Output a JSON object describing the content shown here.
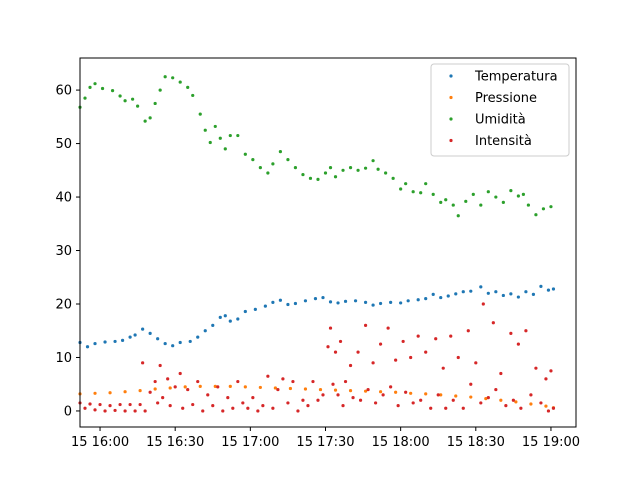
{
  "chart_data": {
    "type": "scatter",
    "title": "",
    "xlabel": "",
    "ylabel": "",
    "x_range": [
      "15 15:44",
      "15 19:02"
    ],
    "ylim": [
      -3,
      66
    ],
    "x_ticks": [
      {
        "t": "15:52",
        "label": "15 16:00"
      },
      {
        "t": "16:22",
        "label": "15 16:30"
      },
      {
        "t": "16:52",
        "label": "15 17:00"
      },
      {
        "t": "17:22",
        "label": "15 17:30"
      },
      {
        "t": "17:52",
        "label": "15 18:00"
      },
      {
        "t": "18:22",
        "label": "15 18:30"
      },
      {
        "t": "18:52",
        "label": "15 19:00"
      }
    ],
    "y_ticks": [
      0,
      10,
      20,
      30,
      40,
      50,
      60
    ],
    "grid": false,
    "legend_position": "top-right",
    "series": [
      {
        "name": "Temperatura",
        "color": "#1f77b4",
        "points": [
          [
            "15:44",
            12.8
          ],
          [
            "15:47",
            12.0
          ],
          [
            "15:50",
            12.6
          ],
          [
            "15:54",
            12.9
          ],
          [
            "15:58",
            13.0
          ],
          [
            "16:01",
            13.2
          ],
          [
            "16:04",
            13.8
          ],
          [
            "16:06",
            14.2
          ],
          [
            "16:09",
            15.3
          ],
          [
            "16:12",
            14.5
          ],
          [
            "16:15",
            13.5
          ],
          [
            "16:18",
            12.6
          ],
          [
            "16:21",
            12.2
          ],
          [
            "16:24",
            12.8
          ],
          [
            "16:28",
            13.0
          ],
          [
            "16:31",
            13.8
          ],
          [
            "16:34",
            15.0
          ],
          [
            "16:37",
            16.0
          ],
          [
            "16:40",
            17.5
          ],
          [
            "16:42",
            17.8
          ],
          [
            "16:44",
            16.8
          ],
          [
            "16:47",
            17.2
          ],
          [
            "16:50",
            18.6
          ],
          [
            "16:54",
            19.0
          ],
          [
            "16:58",
            19.6
          ],
          [
            "17:01",
            20.3
          ],
          [
            "17:04",
            20.7
          ],
          [
            "17:07",
            19.9
          ],
          [
            "17:10",
            20.1
          ],
          [
            "17:14",
            20.6
          ],
          [
            "17:18",
            21.0
          ],
          [
            "17:21",
            21.2
          ],
          [
            "17:24",
            20.4
          ],
          [
            "17:27",
            20.2
          ],
          [
            "17:30",
            20.5
          ],
          [
            "17:34",
            20.6
          ],
          [
            "17:38",
            20.3
          ],
          [
            "17:41",
            19.8
          ],
          [
            "17:44",
            20.1
          ],
          [
            "17:48",
            20.3
          ],
          [
            "17:52",
            20.2
          ],
          [
            "17:55",
            20.6
          ],
          [
            "17:59",
            20.8
          ],
          [
            "18:02",
            21.0
          ],
          [
            "18:05",
            21.8
          ],
          [
            "18:08",
            21.2
          ],
          [
            "18:11",
            21.5
          ],
          [
            "18:14",
            21.9
          ],
          [
            "18:17",
            22.3
          ],
          [
            "18:20",
            22.4
          ],
          [
            "18:24",
            23.2
          ],
          [
            "18:27",
            22.0
          ],
          [
            "18:30",
            22.3
          ],
          [
            "18:33",
            21.6
          ],
          [
            "18:36",
            21.9
          ],
          [
            "18:39",
            21.3
          ],
          [
            "18:42",
            22.3
          ],
          [
            "18:45",
            21.8
          ],
          [
            "18:48",
            23.3
          ],
          [
            "18:51",
            22.6
          ],
          [
            "18:53",
            22.8
          ]
        ]
      },
      {
        "name": "Pressione",
        "color": "#ff7f0e",
        "points": [
          [
            "15:44",
            3.2
          ],
          [
            "15:50",
            3.3
          ],
          [
            "15:56",
            3.4
          ],
          [
            "16:02",
            3.6
          ],
          [
            "16:08",
            3.8
          ],
          [
            "16:14",
            4.1
          ],
          [
            "16:20",
            4.3
          ],
          [
            "16:26",
            4.5
          ],
          [
            "16:32",
            4.6
          ],
          [
            "16:38",
            4.6
          ],
          [
            "16:44",
            4.6
          ],
          [
            "16:50",
            4.5
          ],
          [
            "16:56",
            4.4
          ],
          [
            "17:02",
            4.3
          ],
          [
            "17:08",
            4.2
          ],
          [
            "17:14",
            4.1
          ],
          [
            "17:20",
            4.0
          ],
          [
            "17:26",
            3.9
          ],
          [
            "17:32",
            3.8
          ],
          [
            "17:38",
            3.7
          ],
          [
            "17:44",
            3.6
          ],
          [
            "17:50",
            3.5
          ],
          [
            "17:56",
            3.3
          ],
          [
            "18:02",
            3.2
          ],
          [
            "18:08",
            3.0
          ],
          [
            "18:14",
            2.8
          ],
          [
            "18:20",
            2.6
          ],
          [
            "18:26",
            2.3
          ],
          [
            "18:32",
            2.0
          ],
          [
            "18:38",
            1.7
          ],
          [
            "18:44",
            1.3
          ],
          [
            "18:50",
            0.9
          ],
          [
            "18:53",
            0.6
          ]
        ]
      },
      {
        "name": "Umidità",
        "color": "#2ca02c",
        "points": [
          [
            "15:44",
            56.8
          ],
          [
            "15:46",
            58.5
          ],
          [
            "15:48",
            60.5
          ],
          [
            "15:50",
            61.2
          ],
          [
            "15:53",
            60.3
          ],
          [
            "15:57",
            59.9
          ],
          [
            "16:00",
            58.9
          ],
          [
            "16:02",
            58.0
          ],
          [
            "16:05",
            58.3
          ],
          [
            "16:07",
            57.0
          ],
          [
            "16:10",
            54.2
          ],
          [
            "16:12",
            54.8
          ],
          [
            "16:14",
            57.5
          ],
          [
            "16:16",
            60.0
          ],
          [
            "16:18",
            62.5
          ],
          [
            "16:21",
            62.3
          ],
          [
            "16:24",
            61.5
          ],
          [
            "16:27",
            60.5
          ],
          [
            "16:29",
            59.0
          ],
          [
            "16:32",
            55.5
          ],
          [
            "16:34",
            52.5
          ],
          [
            "16:36",
            50.2
          ],
          [
            "16:38",
            53.2
          ],
          [
            "16:40",
            51.0
          ],
          [
            "16:42",
            49.0
          ],
          [
            "16:44",
            51.5
          ],
          [
            "16:47",
            51.5
          ],
          [
            "16:50",
            48.0
          ],
          [
            "16:53",
            47.0
          ],
          [
            "16:56",
            45.5
          ],
          [
            "16:59",
            44.5
          ],
          [
            "17:01",
            46.2
          ],
          [
            "17:04",
            48.5
          ],
          [
            "17:07",
            47.0
          ],
          [
            "17:10",
            45.5
          ],
          [
            "17:13",
            44.2
          ],
          [
            "17:16",
            43.5
          ],
          [
            "17:19",
            43.3
          ],
          [
            "17:22",
            44.5
          ],
          [
            "17:24",
            45.5
          ],
          [
            "17:26",
            43.8
          ],
          [
            "17:29",
            45.0
          ],
          [
            "17:32",
            45.5
          ],
          [
            "17:35",
            45.0
          ],
          [
            "17:38",
            45.4
          ],
          [
            "17:41",
            46.8
          ],
          [
            "17:43",
            45.2
          ],
          [
            "17:46",
            44.5
          ],
          [
            "17:49",
            43.5
          ],
          [
            "17:52",
            41.5
          ],
          [
            "17:54",
            42.5
          ],
          [
            "17:57",
            41.0
          ],
          [
            "18:00",
            40.8
          ],
          [
            "18:02",
            42.5
          ],
          [
            "18:05",
            40.5
          ],
          [
            "18:08",
            39.0
          ],
          [
            "18:10",
            39.5
          ],
          [
            "18:13",
            38.5
          ],
          [
            "18:15",
            36.5
          ],
          [
            "18:18",
            39.2
          ],
          [
            "18:21",
            40.5
          ],
          [
            "18:24",
            38.5
          ],
          [
            "18:27",
            41.0
          ],
          [
            "18:30",
            40.0
          ],
          [
            "18:33",
            39.0
          ],
          [
            "18:36",
            41.2
          ],
          [
            "18:39",
            40.2
          ],
          [
            "18:41",
            40.5
          ],
          [
            "18:43",
            38.5
          ],
          [
            "18:46",
            36.7
          ],
          [
            "18:49",
            37.8
          ],
          [
            "18:52",
            38.2
          ]
        ]
      },
      {
        "name": "Intensità",
        "color": "#d62728",
        "points": [
          [
            "15:44",
            1.5
          ],
          [
            "15:46",
            0.5
          ],
          [
            "15:48",
            1.3
          ],
          [
            "15:50",
            0.2
          ],
          [
            "15:52",
            1.2
          ],
          [
            "15:54",
            0.0
          ],
          [
            "15:56",
            1.0
          ],
          [
            "15:58",
            0.1
          ],
          [
            "16:00",
            1.2
          ],
          [
            "16:02",
            0.0
          ],
          [
            "16:04",
            1.2
          ],
          [
            "16:06",
            0.0
          ],
          [
            "16:08",
            1.2
          ],
          [
            "16:09",
            9.0
          ],
          [
            "16:10",
            0.0
          ],
          [
            "16:12",
            3.5
          ],
          [
            "16:14",
            5.5
          ],
          [
            "16:15",
            1.5
          ],
          [
            "16:16",
            8.5
          ],
          [
            "16:17",
            2.5
          ],
          [
            "16:19",
            6.0
          ],
          [
            "16:20",
            1.0
          ],
          [
            "16:22",
            4.5
          ],
          [
            "16:24",
            7.0
          ],
          [
            "16:25",
            0.5
          ],
          [
            "16:27",
            4.0
          ],
          [
            "16:29",
            1.2
          ],
          [
            "16:31",
            5.5
          ],
          [
            "16:33",
            0.0
          ],
          [
            "16:35",
            3.0
          ],
          [
            "16:37",
            1.0
          ],
          [
            "16:39",
            4.5
          ],
          [
            "16:41",
            0.0
          ],
          [
            "16:43",
            2.5
          ],
          [
            "16:45",
            0.5
          ],
          [
            "16:47",
            5.5
          ],
          [
            "16:49",
            1.5
          ],
          [
            "16:51",
            0.5
          ],
          [
            "16:53",
            2.5
          ],
          [
            "16:55",
            0.0
          ],
          [
            "16:57",
            1.0
          ],
          [
            "16:59",
            6.5
          ],
          [
            "17:01",
            0.5
          ],
          [
            "17:03",
            4.0
          ],
          [
            "17:05",
            6.0
          ],
          [
            "17:07",
            1.5
          ],
          [
            "17:09",
            5.5
          ],
          [
            "17:11",
            0.0
          ],
          [
            "17:13",
            2.0
          ],
          [
            "17:15",
            1.0
          ],
          [
            "17:17",
            5.5
          ],
          [
            "17:19",
            2.0
          ],
          [
            "17:21",
            3.0
          ],
          [
            "17:23",
            12.0
          ],
          [
            "17:24",
            15.5
          ],
          [
            "17:25",
            5.0
          ],
          [
            "17:26",
            11.0
          ],
          [
            "17:27",
            3.0
          ],
          [
            "17:28",
            13.0
          ],
          [
            "17:29",
            1.0
          ],
          [
            "17:30",
            5.5
          ],
          [
            "17:32",
            8.5
          ],
          [
            "17:33",
            2.5
          ],
          [
            "17:35",
            11.0
          ],
          [
            "17:36",
            2.0
          ],
          [
            "17:38",
            16.0
          ],
          [
            "17:39",
            4.0
          ],
          [
            "17:41",
            9.0
          ],
          [
            "17:42",
            1.5
          ],
          [
            "17:44",
            12.5
          ],
          [
            "17:45",
            3.0
          ],
          [
            "17:47",
            15.5
          ],
          [
            "17:48",
            4.5
          ],
          [
            "17:50",
            9.5
          ],
          [
            "17:51",
            1.0
          ],
          [
            "17:53",
            13.0
          ],
          [
            "17:54",
            3.5
          ],
          [
            "17:56",
            10.0
          ],
          [
            "17:57",
            1.5
          ],
          [
            "17:59",
            14.0
          ],
          [
            "18:00",
            2.0
          ],
          [
            "18:02",
            11.0
          ],
          [
            "18:04",
            0.5
          ],
          [
            "18:06",
            13.5
          ],
          [
            "18:07",
            3.0
          ],
          [
            "18:09",
            8.0
          ],
          [
            "18:10",
            0.5
          ],
          [
            "18:12",
            14.0
          ],
          [
            "18:13",
            2.0
          ],
          [
            "18:15",
            10.0
          ],
          [
            "18:17",
            0.5
          ],
          [
            "18:19",
            15.0
          ],
          [
            "18:20",
            5.0
          ],
          [
            "18:22",
            9.0
          ],
          [
            "18:24",
            1.5
          ],
          [
            "18:25",
            20.0
          ],
          [
            "18:27",
            2.5
          ],
          [
            "18:29",
            16.5
          ],
          [
            "18:30",
            4.0
          ],
          [
            "18:32",
            7.0
          ],
          [
            "18:34",
            1.0
          ],
          [
            "18:36",
            14.5
          ],
          [
            "18:37",
            2.0
          ],
          [
            "18:39",
            12.5
          ],
          [
            "18:40",
            0.5
          ],
          [
            "18:42",
            15.0
          ],
          [
            "18:44",
            3.0
          ],
          [
            "18:46",
            8.0
          ],
          [
            "18:48",
            1.5
          ],
          [
            "18:50",
            6.0
          ],
          [
            "18:51",
            0.0
          ],
          [
            "18:52",
            7.5
          ],
          [
            "18:53",
            0.5
          ]
        ]
      }
    ]
  }
}
